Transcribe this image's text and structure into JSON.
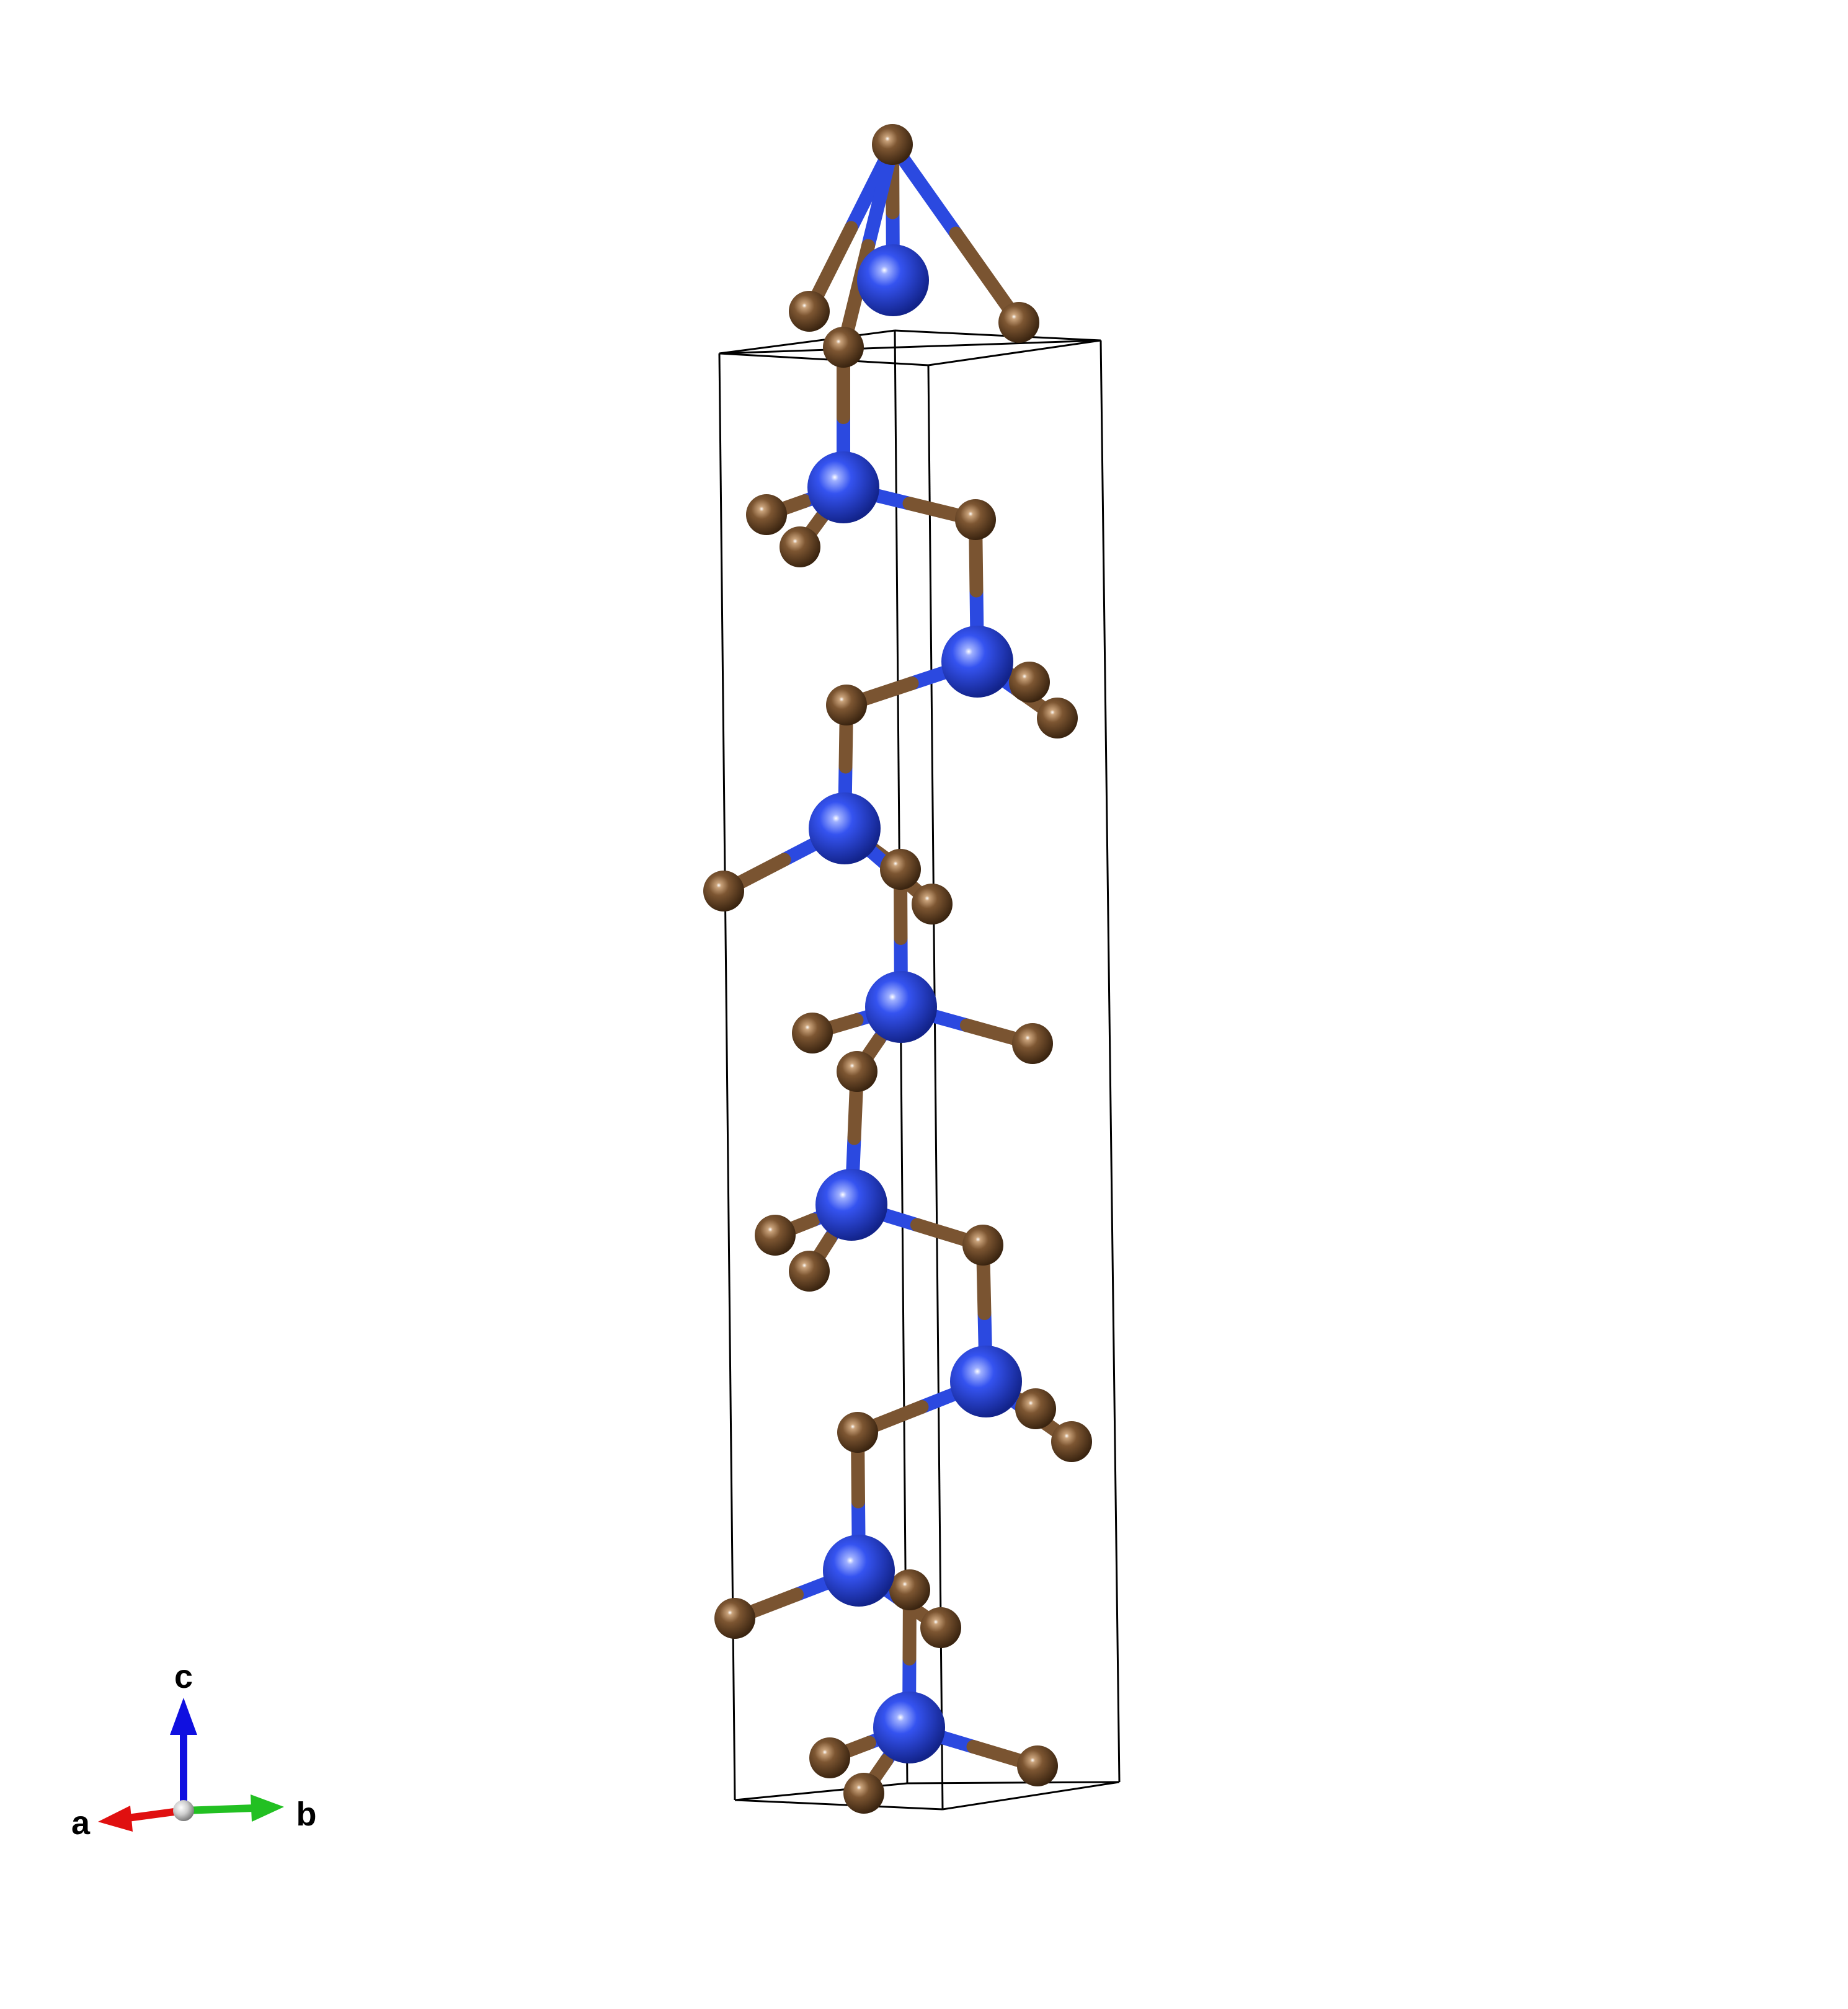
{
  "colors": {
    "background": "#ffffff",
    "atom_blue": "#2b49e0",
    "atom_brown": "#7a5431",
    "cell_edge": "#000000",
    "axis_a": "#e01010",
    "axis_b": "#22c022",
    "axis_c": "#1010e0",
    "axis_origin": "#c8c8c8"
  },
  "axes": {
    "a_label": "a",
    "b_label": "b",
    "c_label": "c"
  }
}
